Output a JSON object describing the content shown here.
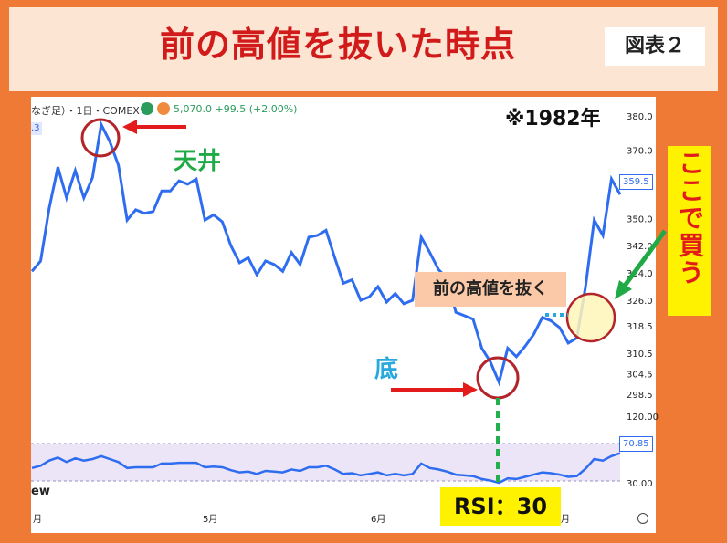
{
  "title": "前の高値を抜いた時点",
  "figure_label": "図表２",
  "year_note": "※1982年",
  "instrument": {
    "header_text": "なぎ足）・1日・COMEX",
    "ohlc_text": "5,070.0 +99.5 (+2.00%)",
    "truncated_label": ".3"
  },
  "annotations": {
    "top": "天井",
    "bottom": "底",
    "breakout": "前の高値を抜く",
    "buy_here": "ここで買う",
    "rsi": "RSI：30"
  },
  "watermark_fragment": "ew",
  "colors": {
    "line": "#2f6df0",
    "rsi_band": "#ece4f7",
    "circle": "#b3242a",
    "arrow_red": "#e31b1b",
    "arrow_green": "#1faa46",
    "dotted_green": "#22b04c",
    "dotted_blue": "#29a8dd",
    "highlight_circle": "#fff6b8"
  },
  "chart_data": [
    {
      "type": "line",
      "name": "price",
      "x_labels": [
        "月",
        "5月",
        "6月",
        "月"
      ],
      "y_ticks": [
        380.0,
        370.0,
        359.5,
        350.0,
        342.0,
        334.0,
        326.0,
        318.5,
        310.5,
        304.5,
        298.5
      ],
      "ylim": [
        295,
        382
      ],
      "current_label": "359.5",
      "values": [
        334.5,
        337.5,
        353,
        365,
        356,
        364,
        356,
        362,
        377.5,
        372.5,
        365.5,
        349.5,
        352.5,
        351.5,
        352,
        358,
        358,
        361,
        360,
        361.5,
        349.5,
        351,
        349,
        342,
        337,
        338.5,
        333.5,
        337.5,
        336.5,
        334.5,
        340,
        336.5,
        344.5,
        345,
        346.5,
        338.5,
        331,
        332,
        326,
        327,
        330,
        325.5,
        328,
        325,
        326,
        344.5,
        340,
        335,
        332.5,
        322.5,
        321.5,
        320.5,
        312,
        308,
        302,
        312,
        309.5,
        312.5,
        316,
        321,
        320,
        318,
        313.5,
        315,
        330,
        349.5,
        345,
        361.5,
        357
      ]
    },
    {
      "type": "line",
      "name": "RSI",
      "y_ticks": [
        120.0,
        70.85,
        30.0
      ],
      "ylim": [
        30,
        120
      ],
      "current_label": "70.85",
      "values": [
        50,
        53,
        60,
        64,
        58,
        63,
        60,
        62,
        66,
        62,
        58,
        50,
        51,
        51,
        51,
        56,
        56,
        57,
        57,
        57,
        51,
        52,
        51,
        47,
        44,
        45,
        42,
        46,
        45,
        44,
        48,
        46,
        51,
        51,
        53,
        48,
        42,
        43,
        40,
        42,
        44,
        40,
        42,
        40,
        42,
        56,
        50,
        48,
        45,
        41,
        40,
        39,
        35,
        33,
        30,
        36,
        35,
        38,
        41,
        44,
        43,
        41,
        38,
        39,
        49,
        62,
        60,
        66,
        70
      ]
    }
  ]
}
